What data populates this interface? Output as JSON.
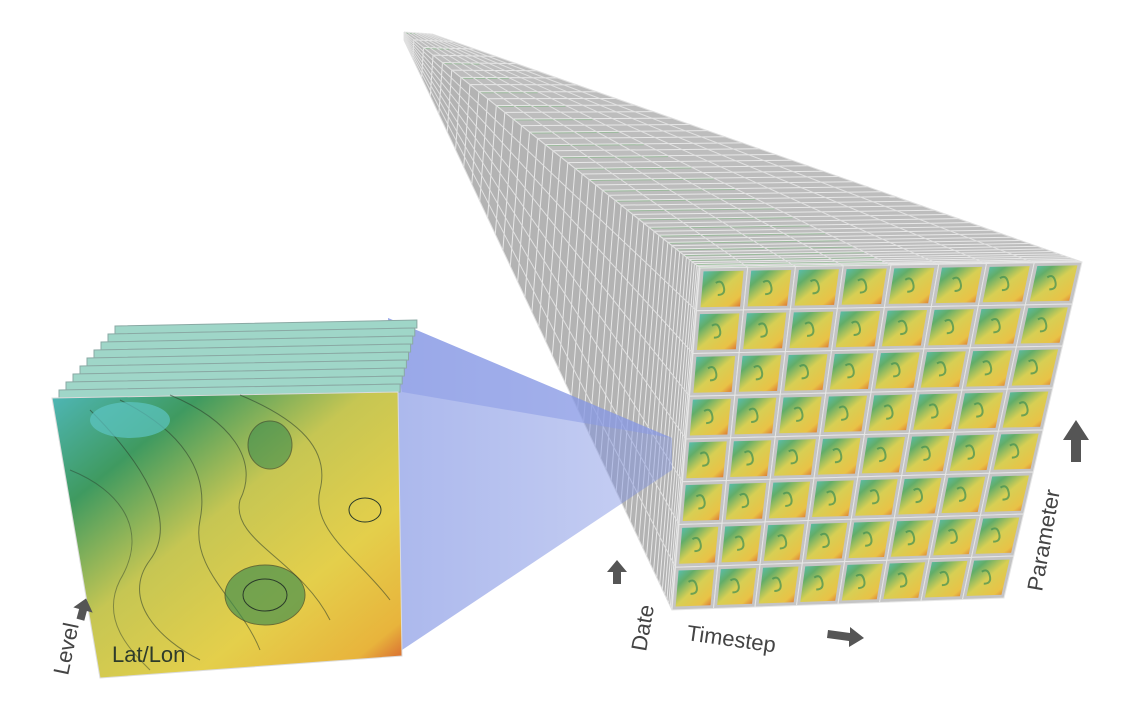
{
  "labels": {
    "level": "Level",
    "latlon": "Lat/Lon",
    "date": "Date",
    "timestep": "Timestep",
    "parameter": "Parameter"
  },
  "icons": {
    "level": "arrow-up-icon",
    "date": "arrow-up-icon",
    "timestep": "arrow-right-icon",
    "parameter": "arrow-up-icon"
  },
  "colors": {
    "cube_face": "#c4c4c4",
    "cube_edge": "#e6e6e6",
    "map_yellow": "#e3cf4c",
    "map_green": "#3f9a60",
    "map_cyan": "#5fc6c4",
    "map_red": "#d2492d",
    "projection": "#8194e3",
    "arrow": "#555555"
  },
  "grid": {
    "columns": 8,
    "rows": 8,
    "depth_layers": 48
  }
}
